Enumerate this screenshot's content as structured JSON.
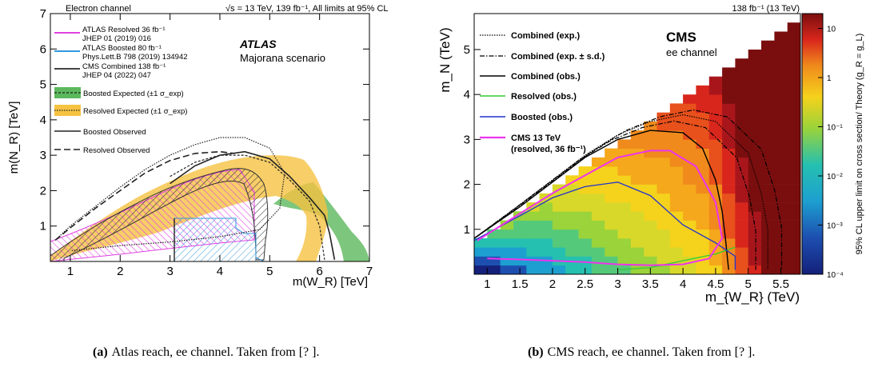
{
  "chart_data": [
    {
      "type": "line",
      "top_left": "Electron channel",
      "top_right": "√s = 13 TeV, 139 fb⁻¹, All limits at 95% CL",
      "experiment": "ATLAS",
      "scenario": "Majorana scenario",
      "xlabel": "m(W_R) [TeV]",
      "ylabel": "m(N_R) [TeV]",
      "xlim": [
        0.6,
        7
      ],
      "ylim": [
        0,
        7
      ],
      "xticks": [
        1,
        2,
        3,
        4,
        5,
        6,
        7
      ],
      "yticks": [
        1,
        2,
        3,
        4,
        5,
        6,
        7
      ],
      "legend_position": "upper-left",
      "legend": [
        {
          "label": "ATLAS Resolved 36 fb⁻¹",
          "sub": "JHEP 01 (2019) 016",
          "color": "#e040e0",
          "style": "hatch"
        },
        {
          "label": "ATLAS Boosted 80 fb⁻¹",
          "sub": "Phys.Lett.B 798 (2019) 134942",
          "color": "#3399dd",
          "style": "hatch"
        },
        {
          "label": "CMS Combined 138 fb⁻¹",
          "sub": "JHEP 04 (2022) 047",
          "color": "#444444",
          "style": "hatch"
        },
        {
          "label": "Boosted Expected (±1 σ_exp)",
          "color": "#5cb85c",
          "style": "band-dashed"
        },
        {
          "label": "Resolved Expected (±1 σ_exp)",
          "color": "#f5c242",
          "style": "band-dotted"
        },
        {
          "label": "Boosted Observed",
          "color": "#222222",
          "style": "solid"
        },
        {
          "label": "Resolved Observed",
          "color": "#222222",
          "style": "dashed"
        }
      ],
      "series": [
        {
          "name": "Boosted Observed",
          "x": [
            3.0,
            3.5,
            4.0,
            4.5,
            5.0,
            5.4,
            5.8,
            6.1,
            6.2,
            6.3
          ],
          "y": [
            2.2,
            2.7,
            3.0,
            3.1,
            2.9,
            2.4,
            1.8,
            1.3,
            0.8,
            0.05
          ]
        },
        {
          "name": "Resolved Observed",
          "x": [
            0.7,
            1.0,
            1.5,
            2.0,
            2.5,
            3.0,
            3.5,
            4.0,
            4.3
          ],
          "y": [
            0.6,
            0.95,
            1.5,
            2.0,
            2.5,
            2.85,
            3.05,
            3.1,
            3.05
          ]
        },
        {
          "name": "Boosted Expected (±1 σ_exp)",
          "x": [
            3.0,
            3.5,
            4.0,
            4.5,
            5.0,
            5.4,
            5.8,
            6.0,
            6.1
          ],
          "y": [
            2.4,
            2.8,
            3.0,
            3.0,
            2.8,
            2.3,
            1.7,
            1.0,
            0.05
          ]
        },
        {
          "name": "Resolved Expected (±1 σ_exp)",
          "x": [
            0.7,
            1.0,
            1.5,
            2.0,
            2.5,
            3.0,
            3.5,
            4.0,
            4.5,
            5.0,
            5.3,
            5.2,
            4.8,
            4.0,
            3.0,
            2.0,
            1.0
          ],
          "y": [
            0.6,
            1.0,
            1.55,
            2.1,
            2.6,
            3.0,
            3.3,
            3.5,
            3.5,
            3.2,
            2.5,
            1.5,
            0.9,
            0.7,
            0.55,
            0.45,
            0.3
          ]
        }
      ]
    },
    {
      "type": "heatmap",
      "lumi": "138 fb⁻¹ (13 TeV)",
      "experiment": "CMS",
      "channel": "ee channel",
      "xlabel": "m_{W_R} (TeV)",
      "ylabel": "m_N (TeV)",
      "zlabel": "95% CL upper limit on cross section/ Theory (g_R = g_L)",
      "xlim": [
        0.8,
        5.8
      ],
      "ylim": [
        0,
        5.8
      ],
      "zlim": [
        0.0001,
        20
      ],
      "zscale": "log",
      "xticks": [
        1,
        1.5,
        2,
        2.5,
        3,
        3.5,
        4,
        4.5,
        5,
        5.5
      ],
      "yticks": [
        1,
        2,
        3,
        4,
        5
      ],
      "zticks": [
        "10⁻⁴",
        "10⁻³",
        "10⁻²",
        "10⁻¹",
        "1",
        "10"
      ],
      "legend_position": "upper-left",
      "legend": [
        {
          "label": "Combined (exp.)",
          "color": "#000000",
          "style": "dotted"
        },
        {
          "label": "Combined (exp. ± s.d.)",
          "color": "#000000",
          "style": "dashdot"
        },
        {
          "label": "Combined (obs.)",
          "color": "#000000",
          "style": "solid"
        },
        {
          "label": "Resolved (obs.)",
          "color": "#33cc33",
          "style": "solid"
        },
        {
          "label": "Boosted (obs.)",
          "color": "#2233cc",
          "style": "solid"
        },
        {
          "label": "CMS 13 TeV",
          "sub": "(resolved, 36 fb⁻¹)",
          "color": "#ee33ee",
          "style": "solid"
        }
      ],
      "series": [
        {
          "name": "Combined (obs.)",
          "x": [
            0.8,
            1.5,
            2.0,
            2.5,
            3.0,
            3.5,
            4.0,
            4.3,
            4.5,
            4.6,
            4.65,
            4.7
          ],
          "y": [
            0.8,
            1.5,
            2.05,
            2.6,
            3.0,
            3.2,
            3.15,
            2.8,
            2.1,
            1.4,
            0.8,
            0.1
          ]
        },
        {
          "name": "Combined (exp.)",
          "x": [
            0.8,
            1.5,
            2.0,
            2.5,
            3.0,
            3.5,
            4.0,
            4.5,
            5.0,
            5.2,
            5.3,
            5.3
          ],
          "y": [
            0.8,
            1.55,
            2.1,
            2.65,
            3.1,
            3.4,
            3.55,
            3.4,
            2.7,
            1.8,
            1.0,
            0.1
          ]
        },
        {
          "name": "Resolved (obs.)",
          "x": [
            3.0,
            3.5,
            4.0,
            4.5,
            4.8
          ],
          "y": [
            0.1,
            0.15,
            0.3,
            0.45,
            0.6
          ]
        },
        {
          "name": "Boosted (obs.)",
          "x": [
            0.8,
            1.5,
            2.0,
            2.5,
            3.0,
            3.5,
            4.0,
            4.5,
            4.8,
            4.8
          ],
          "y": [
            0.75,
            1.3,
            1.7,
            1.95,
            2.05,
            1.75,
            1.1,
            0.7,
            0.4,
            0.1
          ]
        },
        {
          "name": "CMS 13 TeV",
          "x": [
            0.85,
            1.5,
            2.0,
            2.5,
            3.0,
            3.5,
            3.8,
            4.2,
            4.5,
            4.6,
            4.4,
            4.0,
            3.5,
            3.0,
            2.5,
            2.0,
            1.5,
            1.0
          ],
          "y": [
            0.75,
            1.35,
            1.8,
            2.2,
            2.6,
            2.75,
            2.75,
            2.4,
            1.6,
            0.8,
            0.35,
            0.22,
            0.2,
            0.22,
            0.27,
            0.3,
            0.33,
            0.35
          ]
        }
      ]
    }
  ],
  "captions": [
    {
      "label": "(a)",
      "text": "Atlas reach, ee channel. Taken from [? ]."
    },
    {
      "label": "(b)",
      "text": "CMS reach, ee channel. Taken from [? ]."
    }
  ]
}
